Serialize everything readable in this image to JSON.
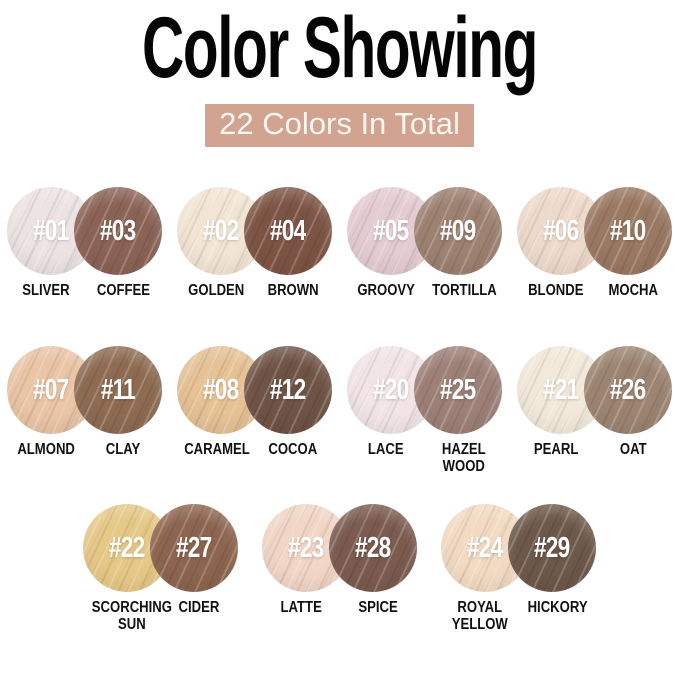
{
  "header": {
    "title": "Color Showing",
    "subtitle": "22 Colors In Total",
    "subtitle_bg": "#d2a391",
    "subtitle_text_color": "#faf6f0",
    "title_color": "#050505"
  },
  "swatches": {
    "total_count": 22,
    "rows": [
      {
        "pairs": [
          {
            "left": {
              "number": "#01",
              "name": "SLIVER",
              "color": "#ede3e3"
            },
            "right": {
              "number": "#03",
              "name": "COFFEE",
              "color": "#8b6356"
            }
          },
          {
            "left": {
              "number": "#02",
              "name": "GOLDEN",
              "color": "#f3e5d4"
            },
            "right": {
              "number": "#04",
              "name": "BROWN",
              "color": "#7d5444"
            }
          },
          {
            "left": {
              "number": "#05",
              "name": "GROOVY",
              "color": "#e4ccd3"
            },
            "right": {
              "number": "#09",
              "name": "TORTILLA",
              "color": "#9d8171"
            }
          },
          {
            "left": {
              "number": "#06",
              "name": "BLONDE",
              "color": "#eedaca"
            },
            "right": {
              "number": "#10",
              "name": "MOCHA",
              "color": "#9a7862"
            }
          }
        ]
      },
      {
        "pairs": [
          {
            "left": {
              "number": "#07",
              "name": "ALMOND",
              "color": "#eac5a6"
            },
            "right": {
              "number": "#11",
              "name": "CLAY",
              "color": "#8e6b51"
            }
          },
          {
            "left": {
              "number": "#08",
              "name": "CARAMEL",
              "color": "#e6c295"
            },
            "right": {
              "number": "#12",
              "name": "COCOA",
              "color": "#6f5345"
            }
          },
          {
            "left": {
              "number": "#20",
              "name": "LACE",
              "color": "#f2e4e7"
            },
            "right": {
              "number": "#25",
              "name": "HAZEL WOOD",
              "color": "#9d8078"
            }
          },
          {
            "left": {
              "number": "#21",
              "name": "PEARL",
              "color": "#f3e9db"
            },
            "right": {
              "number": "#26",
              "name": "OAT",
              "color": "#9c8471"
            }
          }
        ]
      },
      {
        "pairs": [
          {
            "left": {
              "number": "#22",
              "name": "SCORCHING SUN",
              "color": "#e7c987"
            },
            "right": {
              "number": "#27",
              "name": "CIDER",
              "color": "#8d654e"
            }
          },
          {
            "left": {
              "number": "#23",
              "name": "LATTE",
              "color": "#f2d6c6"
            },
            "right": {
              "number": "#28",
              "name": "SPICE",
              "color": "#7b5b4e"
            }
          },
          {
            "left": {
              "number": "#24",
              "name": "ROYAL YELLOW",
              "color": "#f3dbc3"
            },
            "right": {
              "number": "#29",
              "name": "HICKORY",
              "color": "#6d5849"
            }
          }
        ]
      }
    ]
  }
}
